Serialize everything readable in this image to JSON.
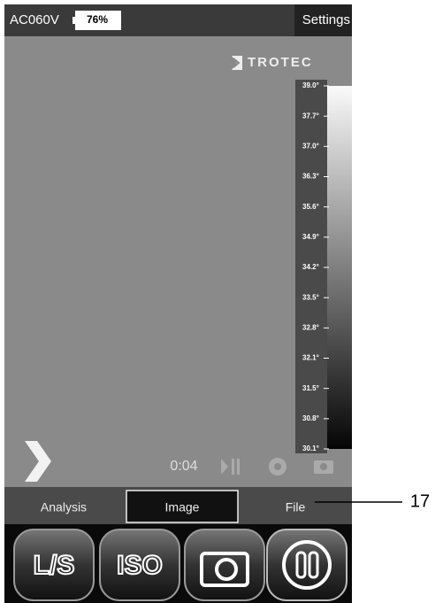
{
  "status_bar": {
    "device": "AC060V",
    "battery": "76%",
    "settings": "Settings"
  },
  "logo": "TROTEC",
  "scale_labels": [
    "39.0°",
    "37.7°",
    "37.0°",
    "36.3°",
    "35.6°",
    "34.9°",
    "34.2°",
    "33.5°",
    "32.8°",
    "32.1°",
    "31.5°",
    "30.8°",
    "30.1°"
  ],
  "recording_time": "0:04",
  "tabs": [
    "Analysis",
    "Image",
    "File"
  ],
  "buttons": [
    "L/S",
    "ISO"
  ],
  "callout": "17"
}
